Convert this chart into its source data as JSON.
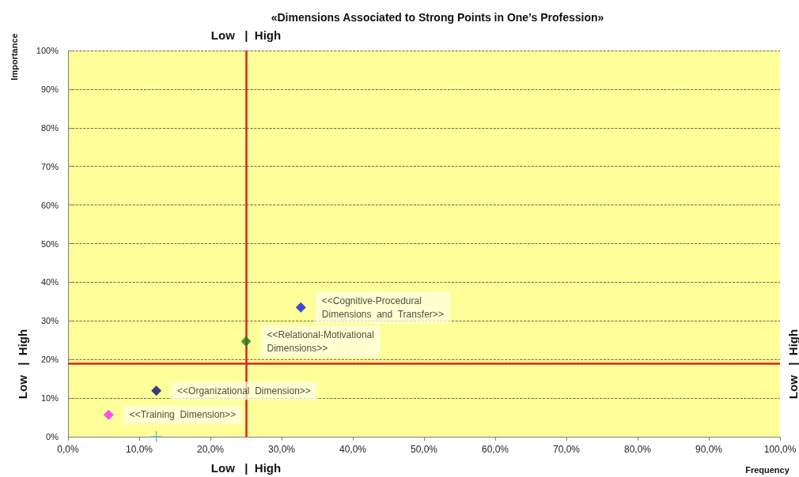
{
  "chart_data": {
    "type": "scatter",
    "title": "«Dimensions Associated to Strong Points in One’s Profession»",
    "xlabel": "Frequency",
    "ylabel": "Importance",
    "annotations": [
      "Low   |  High",
      "Low   |  High",
      "Low   |  High",
      "Low   |  High"
    ],
    "xlim": [
      0,
      100
    ],
    "ylim": [
      0,
      100
    ],
    "xticks": [
      {
        "value": 0,
        "label": "0,0%"
      },
      {
        "value": 10,
        "label": "10,0%"
      },
      {
        "value": 20,
        "label": "20,0%"
      },
      {
        "value": 30,
        "label": "30,0%"
      },
      {
        "value": 40,
        "label": "40,0%"
      },
      {
        "value": 50,
        "label": "50,0%"
      },
      {
        "value": 60,
        "label": "60,0%"
      },
      {
        "value": 70,
        "label": "70,0%"
      },
      {
        "value": 80,
        "label": "80,0%"
      },
      {
        "value": 90,
        "label": "90,0%"
      },
      {
        "value": 100,
        "label": "100,0%"
      }
    ],
    "yticks": [
      {
        "value": 0,
        "label": "0%"
      },
      {
        "value": 10,
        "label": "10%"
      },
      {
        "value": 20,
        "label": "20%"
      },
      {
        "value": 30,
        "label": "30%"
      },
      {
        "value": 40,
        "label": "40%"
      },
      {
        "value": 50,
        "label": "50%"
      },
      {
        "value": 60,
        "label": "60%"
      },
      {
        "value": 70,
        "label": "70%"
      },
      {
        "value": 80,
        "label": "80%"
      },
      {
        "value": 90,
        "label": "90%"
      },
      {
        "value": 100,
        "label": "100%"
      }
    ],
    "grid": "y",
    "legend": false,
    "marker": "diamond",
    "ref_lines": [
      {
        "axis": "x",
        "value": 25,
        "color": "#e0201a"
      },
      {
        "axis": "y",
        "value": 19,
        "color": "#e0201a"
      }
    ],
    "series": [
      {
        "name": "<<Cognitive-Procedural\nDimensions  and  Transfer>>",
        "color": "#0a1ee6",
        "x": [
          32.7
        ],
        "values": [
          33.5
        ]
      },
      {
        "name": "<<Relational-Motivational\nDimensions>>",
        "color": "#1a7a1a",
        "x": [
          25.0
        ],
        "values": [
          24.7
        ]
      },
      {
        "name": "<<Organizational  Dimension>>",
        "color": "#0a0a6e",
        "x": [
          12.4
        ],
        "values": [
          11.9
        ]
      },
      {
        "name": "<<Training  Dimension>>",
        "color": "#ff20ff",
        "x": [
          5.7
        ],
        "values": [
          5.7
        ]
      },
      {
        "color": "#4aa8c8",
        "x": [
          12.4
        ],
        "values": [
          0
        ],
        "marker": "cross"
      }
    ]
  }
}
